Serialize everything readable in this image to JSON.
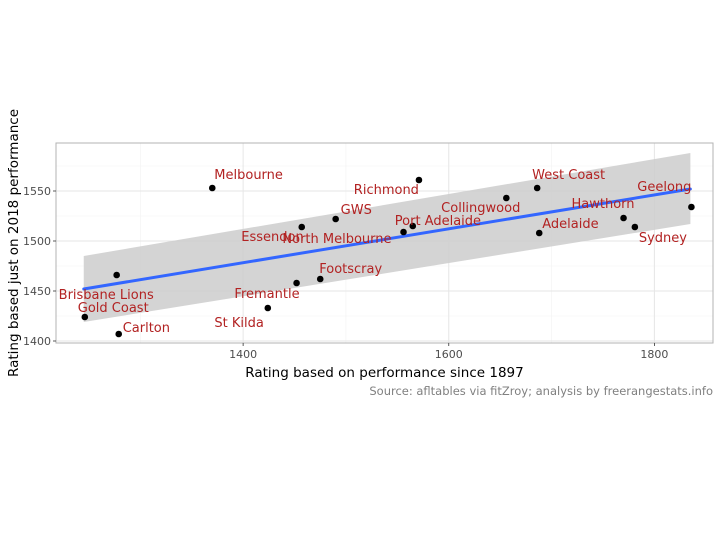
{
  "chart_data": {
    "type": "scatter",
    "title": "",
    "xlabel": "Rating based on performance since 1897",
    "ylabel": "Rating based just on 2018 performance",
    "caption": "Source: afltables via fitZroy; analysis by freerangestats.info",
    "xlim": [
      1218,
      1857
    ],
    "ylim": [
      1398,
      1598
    ],
    "x_ticks": [
      1400,
      1600,
      1800
    ],
    "y_ticks": [
      1400,
      1450,
      1500,
      1550
    ],
    "grid": true,
    "colors": {
      "point": "#000000",
      "label": "#b22222",
      "fit_line": "#3366ff",
      "ribbon": "#cccccc",
      "grid_major": "#e6e6e6",
      "panel_border": "#b3b3b3"
    },
    "trend": {
      "method": "linear fit with confidence band",
      "x": [
        1245,
        1835
      ],
      "y": [
        1452,
        1552
      ],
      "band_lower": [
        1419,
        1517
      ],
      "band_upper": [
        1485,
        1588
      ]
    },
    "points": [
      {
        "label": "Melbourne",
        "x": 1370,
        "y": 1553
      },
      {
        "label": "Richmond",
        "x": 1571,
        "y": 1561
      },
      {
        "label": "West Coast",
        "x": 1686,
        "y": 1553
      },
      {
        "label": "Geelong",
        "x": 1836,
        "y": 1534
      },
      {
        "label": "Collingwood",
        "x": 1656,
        "y": 1543
      },
      {
        "label": "Hawthorn",
        "x": 1770,
        "y": 1523
      },
      {
        "label": "Sydney",
        "x": 1781,
        "y": 1514
      },
      {
        "label": "Adelaide",
        "x": 1688,
        "y": 1508
      },
      {
        "label": "Port Adelaide",
        "x": 1565,
        "y": 1515
      },
      {
        "label": "North Melbourne",
        "x": 1556,
        "y": 1509
      },
      {
        "label": "GWS",
        "x": 1490,
        "y": 1522
      },
      {
        "label": "Essendon",
        "x": 1457,
        "y": 1514
      },
      {
        "label": "Footscray",
        "x": 1475,
        "y": 1462
      },
      {
        "label": "Fremantle",
        "x": 1452,
        "y": 1458
      },
      {
        "label": "St Kilda",
        "x": 1424,
        "y": 1433
      },
      {
        "label": "Brisbane Lions",
        "x": 1277,
        "y": 1466
      },
      {
        "label": "Gold Coast",
        "x": 1246,
        "y": 1424
      },
      {
        "label": "Carlton",
        "x": 1279,
        "y": 1407
      }
    ]
  }
}
